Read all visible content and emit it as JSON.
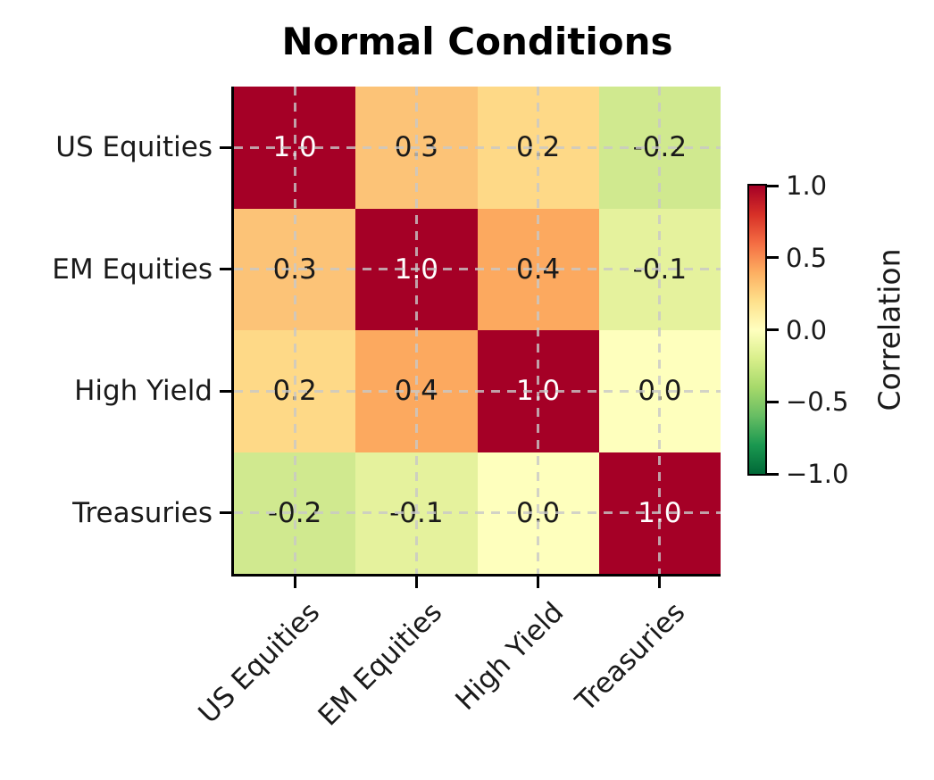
{
  "chart_data": {
    "type": "heatmap",
    "title": "Normal Conditions",
    "x_categories": [
      "US Equities",
      "EM Equities",
      "High Yield",
      "Treasuries"
    ],
    "y_categories": [
      "US Equities",
      "EM Equities",
      "High Yield",
      "Treasuries"
    ],
    "matrix": [
      [
        1.0,
        0.3,
        0.2,
        -0.2
      ],
      [
        0.3,
        1.0,
        0.4,
        -0.1
      ],
      [
        0.2,
        0.4,
        1.0,
        0.0
      ],
      [
        -0.2,
        -0.1,
        0.0,
        1.0
      ]
    ],
    "cell_labels": [
      [
        "1.0",
        "0.3",
        "0.2",
        "-0.2"
      ],
      [
        "0.3",
        "1.0",
        "0.4",
        "-0.1"
      ],
      [
        "0.2",
        "0.4",
        "1.0",
        "0.0"
      ],
      [
        "-0.2",
        "-0.1",
        "0.0",
        "1.0"
      ]
    ],
    "vmin": -1.0,
    "vmax": 1.0,
    "grid": true,
    "colormap": "RdYlGn_r",
    "value_colors": {
      "1": {
        "bg": "#a50026",
        "fg": "#ffffff"
      },
      "0.4": {
        "bg": "#fca95f",
        "fg": "#1a1a1a"
      },
      "0.3": {
        "bg": "#fcc377",
        "fg": "#1a1a1a"
      },
      "0.2": {
        "bg": "#fed987",
        "fg": "#1a1a1a"
      },
      "0": {
        "bg": "#feffbd",
        "fg": "#1a1a1a"
      },
      "-0.1": {
        "bg": "#e5f29d",
        "fg": "#1a1a1a"
      },
      "-0.2": {
        "bg": "#d0e98f",
        "fg": "#1a1a1a"
      }
    },
    "colorbar": {
      "label": "Correlation",
      "tick_labels": [
        "1.0",
        "0.5",
        "0.0",
        "−0.5",
        "−1.0"
      ],
      "tick_values": [
        1.0,
        0.5,
        0.0,
        -0.5,
        -1.0
      ],
      "gradient_stops": [
        "#a50026",
        "#d73027",
        "#f46d43",
        "#fdae61",
        "#fee08b",
        "#ffffbf",
        "#d9ef8b",
        "#a6d96a",
        "#66bd63",
        "#1a9850",
        "#006837"
      ]
    },
    "layout_hints": {
      "legend_position": "right-colorbar",
      "x_tick_rotation_deg": 45,
      "gridline_style": "dashed-lightgray-through-cell-centers"
    }
  }
}
